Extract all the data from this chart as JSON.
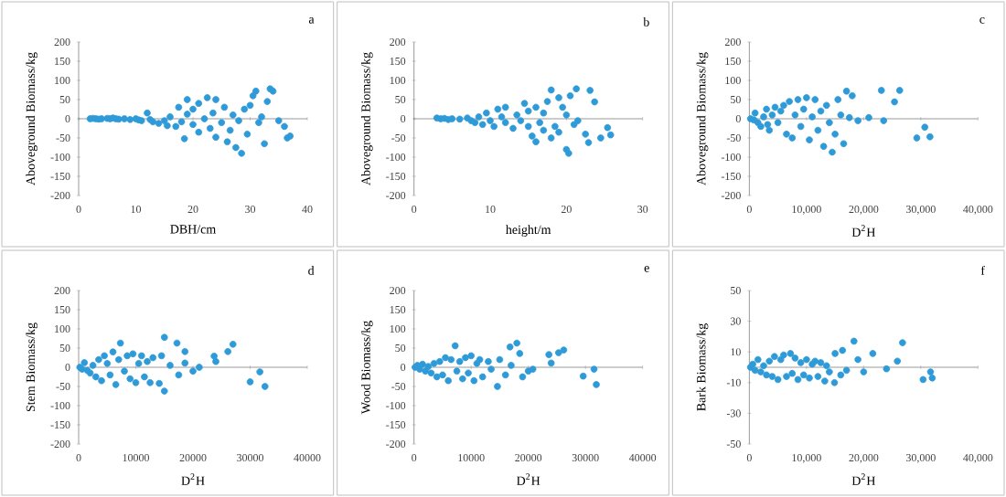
{
  "chart_data": [
    {
      "type": "scatter",
      "annotations": [
        "a"
      ],
      "xlabel": "DBH/cm",
      "ylabel": "Aboveground Biomass/kg",
      "color": "#2f9ad8",
      "marker": "circle",
      "xlim": [
        0,
        40
      ],
      "ylim": [
        -200,
        200
      ],
      "xticks": [
        0,
        10,
        20,
        30,
        40
      ],
      "yticks": [
        -200,
        -150,
        -100,
        -50,
        0,
        50,
        100,
        150,
        200
      ],
      "x": [
        2,
        2.5,
        3,
        3.5,
        4,
        5,
        5.5,
        6,
        6.5,
        7,
        8,
        9,
        10,
        10.5,
        11,
        12,
        12.5,
        13,
        14,
        15,
        15.5,
        16,
        17,
        17.5,
        18,
        18.5,
        19,
        19,
        20,
        20,
        21,
        21,
        22,
        22.5,
        23,
        23.5,
        24,
        24,
        25,
        25.5,
        26,
        26.5,
        27,
        27.5,
        28,
        28.5,
        29,
        29.5,
        30,
        30.5,
        31,
        31.5,
        32,
        32.5,
        33,
        33.5,
        34,
        35,
        36,
        36.5,
        37
      ],
      "values": [
        0,
        1,
        0,
        -1,
        0,
        1,
        0,
        2,
        0,
        -1,
        0,
        -2,
        0,
        -3,
        -5,
        15,
        -2,
        -8,
        -12,
        -5,
        -18,
        5,
        -20,
        30,
        -8,
        -52,
        50,
        12,
        25,
        -15,
        40,
        -35,
        0,
        55,
        -25,
        15,
        50,
        -48,
        -10,
        30,
        -60,
        -30,
        10,
        -75,
        -5,
        -90,
        25,
        -40,
        35,
        60,
        72,
        -10,
        5,
        -65,
        45,
        78,
        72,
        -5,
        -20,
        -50,
        -45
      ]
    },
    {
      "type": "scatter",
      "annotations": [
        "b"
      ],
      "xlabel": "height/m",
      "ylabel": "Aboveground Biomass/kg",
      "color": "#2f9ad8",
      "marker": "circle",
      "xlim": [
        0,
        30
      ],
      "ylim": [
        -200,
        200
      ],
      "xticks": [
        0,
        10,
        20,
        30
      ],
      "yticks": [
        -200,
        -150,
        -100,
        -50,
        0,
        50,
        100,
        150,
        200
      ],
      "x": [
        3,
        3.5,
        4,
        4.5,
        5,
        6,
        7,
        7.5,
        8,
        8.5,
        9,
        9.5,
        10,
        10.5,
        11,
        11.5,
        12,
        12,
        13,
        13.5,
        14,
        14.5,
        15,
        15,
        15.5,
        16,
        16,
        16.5,
        17,
        17,
        17.5,
        18,
        18,
        18.5,
        19,
        19,
        19.5,
        20,
        20,
        20.3,
        20.5,
        21,
        21.3,
        21.5,
        22.5,
        22.9,
        23.1,
        23.7,
        24.5,
        25.4,
        25.8
      ],
      "values": [
        2,
        0,
        1,
        -2,
        0,
        -1,
        2,
        -5,
        -10,
        5,
        -15,
        15,
        -5,
        -20,
        25,
        5,
        30,
        -10,
        -25,
        10,
        -5,
        40,
        20,
        -20,
        -45,
        -60,
        30,
        -10,
        15,
        -30,
        45,
        75,
        -50,
        -20,
        55,
        -35,
        30,
        -80,
        10,
        -90,
        60,
        -15,
        78,
        -5,
        -40,
        -62,
        74,
        44,
        -50,
        -23,
        -42
      ]
    },
    {
      "type": "scatter",
      "annotations": [
        "c"
      ],
      "xlabel": "D$^{2}$H",
      "ylabel": "Aboveground Biomass/kg",
      "color": "#2f9ad8",
      "marker": "circle",
      "xlim": [
        0,
        40000
      ],
      "ylim": [
        -200,
        200
      ],
      "xticks": [
        0,
        {
          "value": 10000,
          "label": "10,000"
        },
        {
          "value": 20000,
          "label": "20,000"
        },
        {
          "value": 30000,
          "label": "30,000"
        },
        {
          "value": 40000,
          "label": "40,000"
        }
      ],
      "yticks": [
        -200,
        -150,
        -100,
        -50,
        0,
        50,
        100,
        150,
        200
      ],
      "x": [
        200,
        500,
        800,
        1000,
        1500,
        2000,
        2500,
        3000,
        3200,
        3500,
        4000,
        4500,
        5000,
        5500,
        6000,
        6500,
        7000,
        7500,
        8000,
        8500,
        9000,
        9500,
        10000,
        10500,
        11000,
        11500,
        12000,
        12500,
        13000,
        13500,
        14000,
        14500,
        15000,
        15500,
        16000,
        16500,
        17000,
        17500,
        18000,
        19000,
        20900,
        23100,
        23500,
        25400,
        26300,
        29300,
        30700,
        31600
      ],
      "values": [
        0,
        null,
        -3,
        15,
        -10,
        -20,
        5,
        25,
        -15,
        -30,
        10,
        30,
        -10,
        20,
        35,
        -40,
        45,
        -50,
        10,
        50,
        -20,
        25,
        55,
        -55,
        5,
        50,
        -30,
        20,
        -72,
        35,
        -10,
        -87,
        -40,
        50,
        10,
        -65,
        72,
        3,
        60,
        -5,
        3,
        74,
        -5,
        44,
        74,
        -50,
        -22,
        -47
      ]
    },
    {
      "type": "scatter",
      "annotations": [
        "d"
      ],
      "xlabel": "D$^{2}$H",
      "ylabel": "Stem Biomass/kg",
      "color": "#2f9ad8",
      "marker": "circle",
      "xlim": [
        0,
        40000
      ],
      "ylim": [
        -200,
        200
      ],
      "xticks": [
        0,
        10000,
        20000,
        30000,
        40000
      ],
      "yticks": [
        -200,
        -150,
        -100,
        -50,
        0,
        50,
        100,
        150,
        200
      ],
      "x": [
        200,
        600,
        1000,
        1500,
        2000,
        2500,
        3000,
        3500,
        4000,
        4500,
        5000,
        5500,
        6000,
        6500,
        7000,
        7300,
        8000,
        8500,
        9000,
        9500,
        10000,
        10500,
        11000,
        11500,
        12000,
        12500,
        13000,
        14100,
        14500,
        15000,
        15000,
        16000,
        17200,
        17500,
        18600,
        18600,
        20000,
        21100,
        23700,
        24000,
        26100,
        27000,
        30000,
        31700,
        32600
      ],
      "values": [
        0,
        -5,
        12,
        -8,
        -15,
        5,
        -25,
        20,
        -35,
        30,
        10,
        -20,
        40,
        -45,
        20,
        63,
        -10,
        30,
        -30,
        35,
        -40,
        10,
        30,
        -25,
        15,
        -40,
        25,
        -42,
        30,
        78,
        -62,
        5,
        63,
        -20,
        11,
        41,
        -10,
        0,
        29,
        15,
        41,
        60,
        -38,
        -12,
        -50
      ]
    },
    {
      "type": "scatter",
      "annotations": [
        "e"
      ],
      "xlabel": "D$^{2}$H",
      "ylabel": "Wood Biomass/kg",
      "color": "#2f9ad8",
      "marker": "circle",
      "xlim": [
        0,
        40000
      ],
      "ylim": [
        -200,
        200
      ],
      "xticks": [
        0,
        10000,
        20000,
        30000,
        40000
      ],
      "yticks": [
        -200,
        -150,
        -100,
        -50,
        0,
        50,
        100,
        150,
        200
      ],
      "x": [
        200,
        600,
        1000,
        1500,
        2000,
        2500,
        3000,
        3500,
        4000,
        4500,
        5000,
        5500,
        6000,
        6500,
        7200,
        7500,
        8000,
        8500,
        9000,
        9500,
        10000,
        10500,
        11000,
        11500,
        12000,
        13000,
        13500,
        14600,
        15000,
        16000,
        16800,
        17000,
        18000,
        18500,
        19000,
        20000,
        20800,
        23600,
        24000,
        25300,
        26200,
        29600,
        31500,
        31900
      ],
      "values": [
        0,
        5,
        -5,
        8,
        -10,
        2,
        -15,
        10,
        -25,
        15,
        -20,
        25,
        -35,
        20,
        56,
        -10,
        15,
        -30,
        25,
        -15,
        30,
        -35,
        10,
        20,
        -25,
        15,
        -5,
        -50,
        20,
        -20,
        53,
        5,
        63,
        36,
        -25,
        -10,
        -5,
        33,
        11,
        38,
        45,
        -23,
        -5,
        -45
      ]
    },
    {
      "type": "scatter",
      "annotations": [
        "f"
      ],
      "xlabel": "D$^{2}$H",
      "ylabel": "Bark Biomass/kg",
      "color": "#2f9ad8",
      "marker": "circle",
      "xlim": [
        0,
        40000
      ],
      "ylim": [
        -50,
        50
      ],
      "xticks": [
        0,
        {
          "value": 10000,
          "label": "10,000"
        },
        {
          "value": 20000,
          "label": "20,000"
        },
        {
          "value": 30000,
          "label": "30,000"
        },
        {
          "value": 40000,
          "label": "40,000"
        }
      ],
      "yticks": [
        -50,
        -30,
        -10,
        10,
        30,
        50
      ],
      "x": [
        200,
        600,
        1000,
        1500,
        2000,
        2500,
        3000,
        3500,
        4000,
        4400,
        5000,
        5500,
        6000,
        6500,
        7200,
        7500,
        8000,
        8500,
        9000,
        9500,
        10000,
        10500,
        11000,
        11500,
        12000,
        12500,
        13200,
        13500,
        14000,
        14900,
        15000,
        16000,
        16300,
        17000,
        18300,
        19000,
        20000,
        21600,
        24000,
        25900,
        26800,
        30400,
        31700,
        32000
      ],
      "values": [
        0,
        2,
        -2,
        5,
        -3,
        1,
        -5,
        4,
        -6,
        7,
        -8,
        5,
        8,
        -6,
        9,
        -4,
        6,
        -8,
        3,
        -5,
        5,
        -7,
        2,
        4,
        -6,
        3,
        -9,
        1,
        -3,
        -10,
        9,
        -5,
        11,
        -2,
        17,
        5,
        -3,
        9,
        -1,
        4,
        16,
        -8,
        -3,
        -7
      ]
    }
  ]
}
